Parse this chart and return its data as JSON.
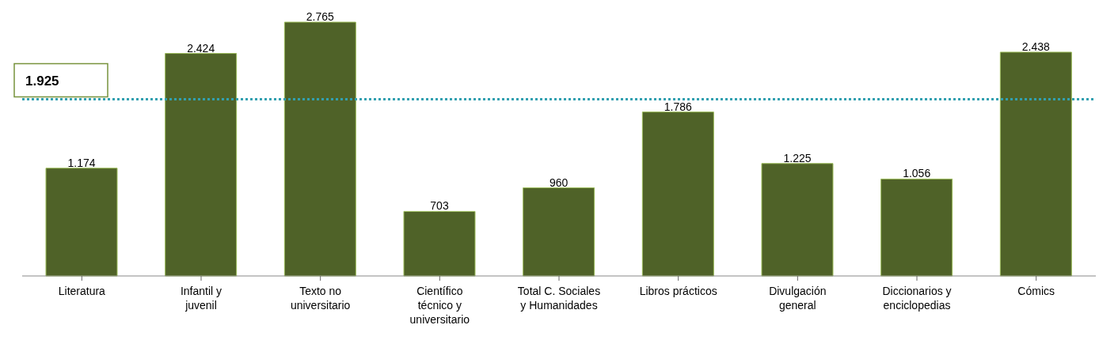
{
  "chart_data": {
    "type": "bar",
    "categories": [
      "Literatura",
      "Infantil y juvenil",
      "Texto no universitario",
      "Científico técnico y universitario",
      "Total C. Sociales y Humanidades",
      "Libros prácticos",
      "Divulgación general",
      "Diccionarios y enciclopedias",
      "Cómics"
    ],
    "values": [
      1174,
      2424,
      2765,
      703,
      960,
      1786,
      1225,
      1056,
      2438
    ],
    "value_labels": [
      "1.174",
      "2.424",
      "2.765",
      "703",
      "960",
      "1.786",
      "1.225",
      "1.056",
      "2.438"
    ],
    "color": "#4f6228",
    "ref_lines": [
      {
        "axis": "y",
        "value": 1925,
        "label": "1.925",
        "color": "#31a0b0",
        "line_style": "dotted"
      }
    ],
    "grid": false,
    "legend": false
  }
}
